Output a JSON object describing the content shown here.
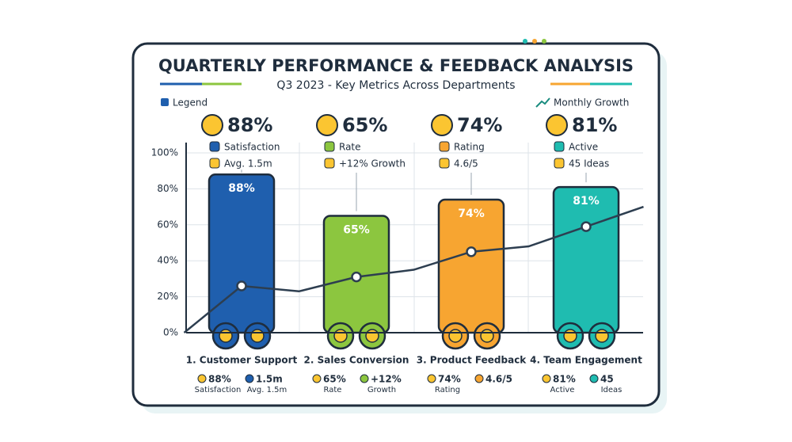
{
  "chart_data": {
    "type": "bar",
    "title": "QUARTERLY PERFORMANCE & FEEDBACK ANALYSIS",
    "subtitle": "Q3 2023 - Key Metrics Across Departments",
    "legend_label": "Legend",
    "categories": [
      "1. Customer Support",
      "2. Sales Conversion",
      "3. Product Feedback",
      "4. Team Engagement"
    ],
    "values": [
      88,
      65,
      74,
      81
    ],
    "value_labels": [
      "88%",
      "65%",
      "74%",
      "81%"
    ],
    "colors": [
      "#1f5fae",
      "#8cc63f",
      "#f7a531",
      "#1fbcb0"
    ],
    "line": {
      "name": "Monthly Growth",
      "color": "#2d3e50",
      "x": [
        -0.5,
        0,
        0.5,
        1,
        1.5,
        2,
        2.5,
        3,
        3.5
      ],
      "values": [
        0,
        26,
        23,
        31,
        35,
        45,
        48,
        59,
        70
      ]
    },
    "ylim": [
      0,
      100
    ],
    "yticks": [
      {
        "value": 0,
        "label": "0%"
      },
      {
        "value": 20,
        "label": "20%"
      },
      {
        "value": 40,
        "label": "40%"
      },
      {
        "value": 60,
        "label": "60%"
      },
      {
        "value": 80,
        "label": "80%"
      },
      {
        "value": 100,
        "label": "100%"
      }
    ],
    "grid": true,
    "panels": [
      {
        "headline": "88%",
        "label": "Satisfaction",
        "detail": "Avg. 1.5m"
      },
      {
        "headline": "65%",
        "label": "Rate",
        "detail": "+12% Growth"
      },
      {
        "headline": "74%",
        "label": "Rating",
        "detail": "4.6/5"
      },
      {
        "headline": "81%",
        "label": "Active",
        "detail": "45 Ideas"
      }
    ],
    "footers": [
      {
        "a": "88%",
        "a_sub": "Satisfaction",
        "b": "1.5m",
        "b_sub": "Avg. 1.5m"
      },
      {
        "a": "65%",
        "a_sub": "Rate",
        "b": "+12%",
        "b_sub": "Growth"
      },
      {
        "a": "74%",
        "a_sub": "Rating",
        "b": "4.6/5"
      },
      {
        "a": "81%",
        "a_sub": "Active",
        "b": "45",
        "b_sub": "Ideas"
      }
    ]
  }
}
